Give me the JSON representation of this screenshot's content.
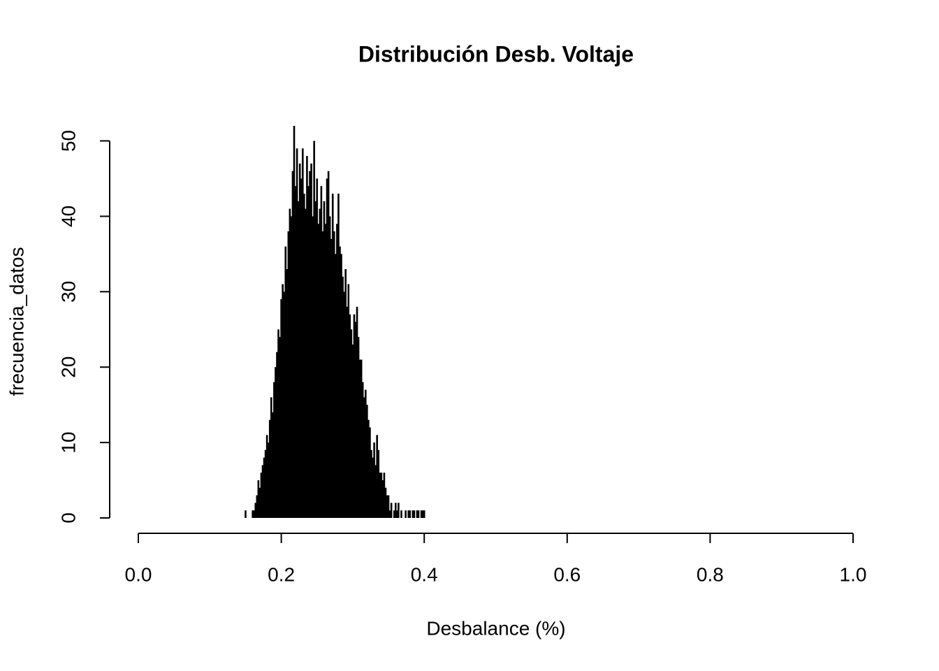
{
  "chart_data": {
    "type": "spike",
    "title": "Distribución Desb. Voltaje",
    "xlabel": "Desbalance (%)",
    "ylabel": "frecuencia_datos",
    "color": "#000000",
    "xlim": [
      0,
      1
    ],
    "ylim": [
      0,
      52
    ],
    "xticks": [
      {
        "value": 0,
        "label": "0.0"
      },
      0.2,
      0.4,
      0.6,
      0.8,
      {
        "value": 1,
        "label": "1.0"
      }
    ],
    "yticks": [
      0,
      10,
      20,
      30,
      40,
      50
    ],
    "x": [
      0.15,
      0.152,
      0.154,
      0.156,
      0.158,
      0.16,
      0.162,
      0.164,
      0.166,
      0.168,
      0.17,
      0.172,
      0.174,
      0.176,
      0.178,
      0.18,
      0.182,
      0.184,
      0.186,
      0.188,
      0.19,
      0.192,
      0.194,
      0.196,
      0.198,
      0.2,
      0.202,
      0.204,
      0.206,
      0.208,
      0.21,
      0.212,
      0.214,
      0.216,
      0.218,
      0.22,
      0.222,
      0.224,
      0.226,
      0.228,
      0.23,
      0.232,
      0.234,
      0.236,
      0.238,
      0.24,
      0.242,
      0.244,
      0.246,
      0.248,
      0.25,
      0.252,
      0.254,
      0.256,
      0.258,
      0.26,
      0.262,
      0.264,
      0.266,
      0.268,
      0.27,
      0.272,
      0.274,
      0.276,
      0.278,
      0.28,
      0.282,
      0.284,
      0.286,
      0.288,
      0.29,
      0.292,
      0.294,
      0.296,
      0.298,
      0.3,
      0.302,
      0.304,
      0.306,
      0.308,
      0.31,
      0.312,
      0.314,
      0.316,
      0.318,
      0.32,
      0.322,
      0.324,
      0.326,
      0.328,
      0.33,
      0.332,
      0.334,
      0.336,
      0.338,
      0.34,
      0.342,
      0.344,
      0.346,
      0.348,
      0.35,
      0.352,
      0.354,
      0.356,
      0.358,
      0.36,
      0.362,
      0.364,
      0.366,
      0.368,
      0.37,
      0.372,
      0.374,
      0.376,
      0.378,
      0.38,
      0.382,
      0.384,
      0.386,
      0.388,
      0.39,
      0.392,
      0.394,
      0.396,
      0.398,
      0.4
    ],
    "values": [
      1,
      0,
      0,
      0,
      0,
      1,
      1,
      2,
      3,
      5,
      4,
      6,
      7,
      8,
      9,
      11,
      10,
      13,
      16,
      14,
      18,
      20,
      22,
      25,
      24,
      29,
      31,
      30,
      36,
      33,
      38,
      41,
      40,
      46,
      52,
      44,
      49,
      42,
      47,
      45,
      49,
      43,
      41,
      48,
      44,
      46,
      47,
      40,
      50,
      42,
      45,
      39,
      41,
      44,
      38,
      42,
      39,
      45,
      46,
      40,
      37,
      43,
      38,
      35,
      39,
      43,
      36,
      35,
      32,
      30,
      33,
      28,
      31,
      27,
      25,
      23,
      27,
      26,
      28,
      24,
      21,
      21,
      18,
      16,
      17,
      15,
      13,
      12,
      9,
      8,
      10,
      7,
      11,
      9,
      6,
      6,
      5,
      6,
      4,
      3,
      3,
      1,
      2,
      0,
      1,
      2,
      1,
      2,
      0,
      1,
      0,
      0,
      1,
      0,
      1,
      1,
      0,
      1,
      1,
      0,
      1,
      1,
      0,
      1,
      1,
      1
    ]
  }
}
